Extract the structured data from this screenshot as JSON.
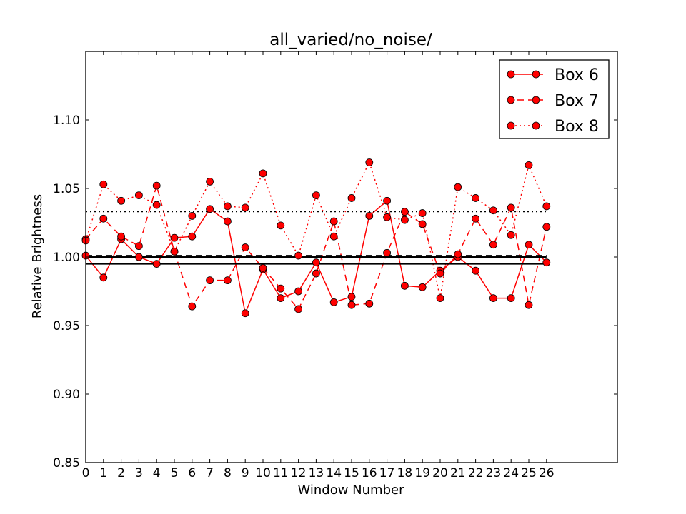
{
  "chart_data": {
    "type": "line",
    "title": "all_varied/no_noise/",
    "xlabel": "Window Number",
    "ylabel": "Relative Brightness",
    "xlim": [
      0,
      30
    ],
    "ylim": [
      0.85,
      1.15
    ],
    "x_ticks": [
      0,
      1,
      2,
      3,
      4,
      5,
      6,
      7,
      8,
      9,
      10,
      11,
      12,
      13,
      14,
      15,
      16,
      17,
      18,
      19,
      20,
      21,
      22,
      23,
      24,
      25,
      26
    ],
    "y_ticks": [
      0.85,
      0.9,
      0.95,
      1.0,
      1.05,
      1.1
    ],
    "y_tick_labels": [
      "0.85",
      "0.90",
      "0.95",
      "1.00",
      "1.05",
      "1.10"
    ],
    "grid": false,
    "legend_position": "top-right",
    "x": [
      0,
      1,
      2,
      3,
      4,
      5,
      6,
      7,
      8,
      9,
      10,
      11,
      12,
      13,
      14,
      15,
      16,
      17,
      18,
      19,
      20,
      21,
      22,
      23,
      24,
      25,
      26
    ],
    "series": [
      {
        "name": "Box 6",
        "color": "#ff0000",
        "linestyle": "solid",
        "marker": "circle",
        "values": [
          1.001,
          0.985,
          1.013,
          1.0,
          0.995,
          1.014,
          1.015,
          1.035,
          1.026,
          0.959,
          0.991,
          0.97,
          0.975,
          0.996,
          0.967,
          0.971,
          1.03,
          1.041,
          0.979,
          0.978,
          0.99,
          1.0,
          0.99,
          0.97,
          0.97,
          1.009,
          0.996
        ],
        "mean": 0.995
      },
      {
        "name": "Box 7",
        "color": "#ff0000",
        "linestyle": "dashed",
        "marker": "circle",
        "values": [
          1.013,
          1.028,
          1.015,
          1.008,
          1.052,
          1.004,
          0.964,
          0.983,
          0.983,
          1.007,
          0.992,
          0.977,
          0.962,
          0.988,
          1.026,
          0.965,
          0.966,
          1.003,
          1.033,
          1.024,
          0.988,
          1.002,
          1.028,
          1.009,
          1.036,
          0.965,
          1.022
        ],
        "mean": 1.001
      },
      {
        "name": "Box 8",
        "color": "#ff0000",
        "linestyle": "dotted",
        "marker": "circle",
        "values": [
          1.012,
          1.053,
          1.041,
          1.045,
          1.038,
          1.004,
          1.03,
          1.055,
          1.037,
          1.036,
          1.061,
          1.023,
          1.001,
          1.045,
          1.015,
          1.043,
          1.069,
          1.029,
          1.027,
          1.032,
          0.97,
          1.051,
          1.043,
          1.034,
          1.016,
          1.067,
          1.037
        ],
        "mean": 1.033
      }
    ],
    "reference_line": 1.0
  }
}
